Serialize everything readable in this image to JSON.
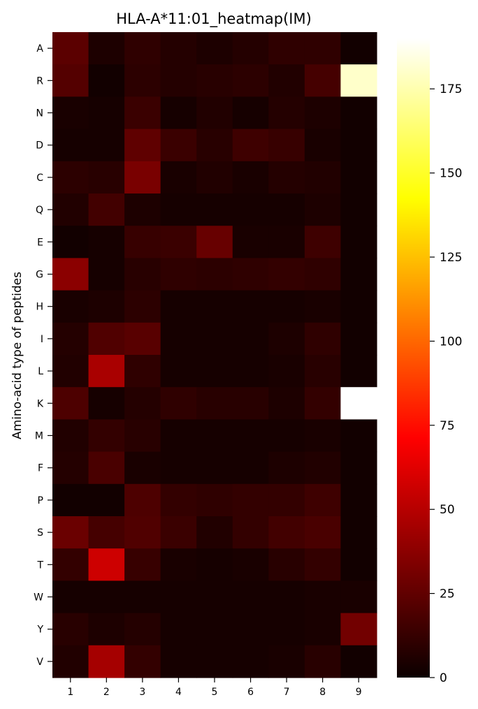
{
  "chart_data": {
    "type": "heatmap",
    "title": "HLA-A*11:01_heatmap(IM)",
    "xlabel": "",
    "ylabel": "Amino-acid type of peptides",
    "x_categories": [
      "1",
      "2",
      "3",
      "4",
      "5",
      "6",
      "7",
      "8",
      "9"
    ],
    "y_categories": [
      "A",
      "R",
      "N",
      "D",
      "C",
      "Q",
      "E",
      "G",
      "H",
      "I",
      "L",
      "K",
      "M",
      "F",
      "P",
      "S",
      "T",
      "W",
      "Y",
      "V"
    ],
    "values": [
      [
        22,
        5,
        10,
        7,
        5,
        7,
        10,
        10,
        2
      ],
      [
        20,
        2,
        9,
        7,
        8,
        9,
        6,
        16,
        180
      ],
      [
        4,
        3,
        13,
        3,
        6,
        3,
        7,
        5,
        2
      ],
      [
        3,
        3,
        23,
        13,
        8,
        14,
        12,
        4,
        2
      ],
      [
        9,
        8,
        30,
        4,
        6,
        4,
        7,
        6,
        2
      ],
      [
        6,
        15,
        5,
        3,
        3,
        3,
        3,
        5,
        2
      ],
      [
        2,
        3,
        12,
        13,
        25,
        4,
        4,
        14,
        2
      ],
      [
        35,
        3,
        8,
        10,
        9,
        10,
        11,
        10,
        2
      ],
      [
        4,
        5,
        9,
        3,
        3,
        3,
        3,
        4,
        2
      ],
      [
        7,
        19,
        21,
        3,
        3,
        3,
        5,
        10,
        2
      ],
      [
        6,
        43,
        10,
        3,
        3,
        3,
        4,
        8,
        2
      ],
      [
        18,
        3,
        7,
        10,
        8,
        8,
        5,
        11,
        190
      ],
      [
        6,
        11,
        8,
        3,
        3,
        3,
        3,
        4,
        2
      ],
      [
        7,
        17,
        4,
        3,
        3,
        3,
        5,
        6,
        2
      ],
      [
        2,
        2,
        18,
        11,
        10,
        11,
        11,
        14,
        2
      ],
      [
        26,
        16,
        19,
        13,
        6,
        11,
        15,
        17,
        2
      ],
      [
        11,
        53,
        12,
        4,
        3,
        4,
        8,
        11,
        2
      ],
      [
        3,
        3,
        3,
        3,
        3,
        3,
        3,
        4,
        4
      ],
      [
        8,
        5,
        7,
        3,
        3,
        3,
        3,
        4,
        28
      ],
      [
        6,
        42,
        11,
        3,
        3,
        3,
        4,
        8,
        2
      ]
    ],
    "colormap": "hot",
    "vmin": 0,
    "vmax": 190,
    "colorbar_ticks": [
      0,
      25,
      50,
      75,
      100,
      125,
      150,
      175
    ],
    "colorbar_label": "",
    "grid": false,
    "legend": "colorbar-right"
  }
}
